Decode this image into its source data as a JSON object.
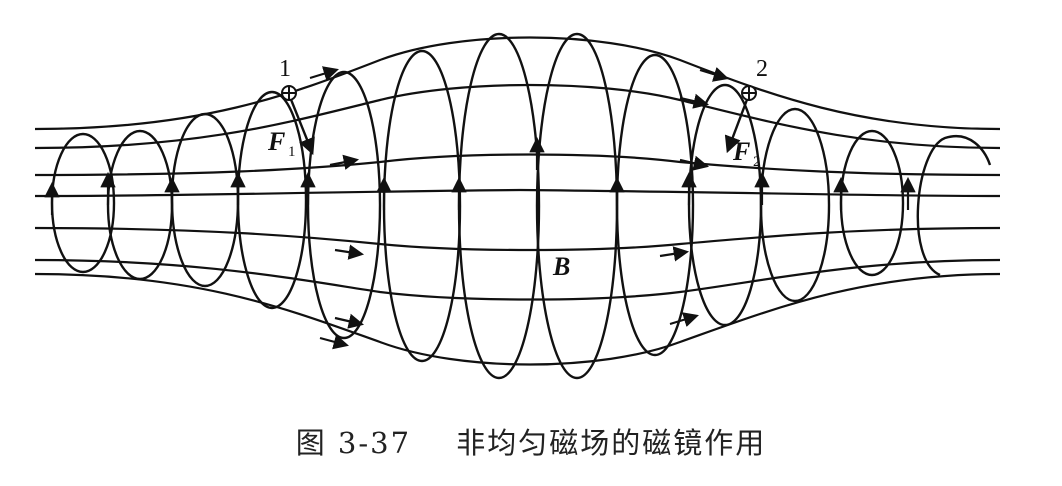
{
  "labels": {
    "point1": "1",
    "point2": "2",
    "force1_letter": "F",
    "force1_sub": "1",
    "force2_letter": "F",
    "force2_sub": "2",
    "field": "B"
  },
  "caption": {
    "number": "图 3-37",
    "text": "非均匀磁场的磁镜作用"
  },
  "colors": {
    "ink": "#111111",
    "background": "#ffffff"
  }
}
